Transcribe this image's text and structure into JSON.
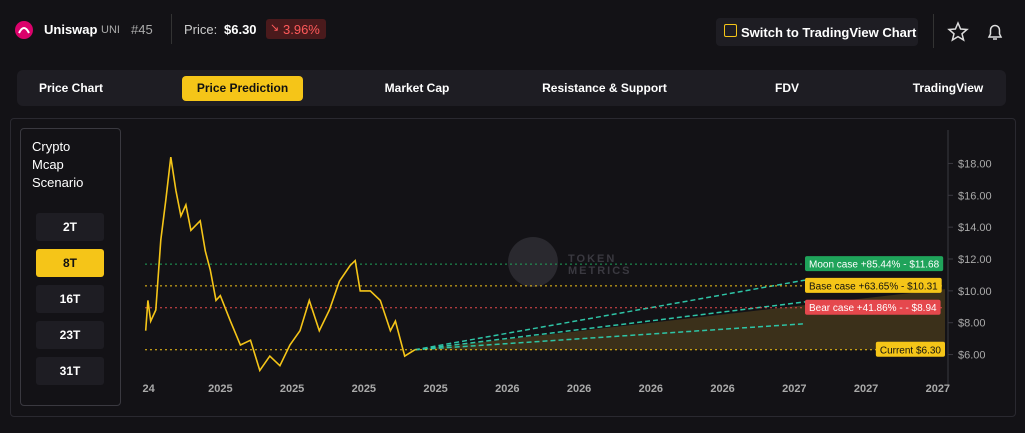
{
  "header": {
    "name": "Uniswap",
    "symbol": "UNI",
    "rank": "#45",
    "price_label": "Price:",
    "price": "$6.30",
    "change": "3.96%",
    "button": "Switch to TradingView Chart"
  },
  "tabs": [
    "Price Chart",
    "Price Prediction",
    "Market Cap",
    "Resistance & Support",
    "FDV",
    "TradingView"
  ],
  "active_tab": 1,
  "scenario_panel": {
    "title": "Crypto Mcap Scenario",
    "options": [
      "2T",
      "8T",
      "16T",
      "23T",
      "31T"
    ],
    "active": 1
  },
  "watermark": [
    "TOKEN",
    "METRICS"
  ],
  "chart_data": {
    "type": "line",
    "price": {
      "name": "Price",
      "color": "#f5c518",
      "x": [
        -0.04,
        -0.01,
        0.03,
        0.1,
        0.17,
        0.24,
        0.31,
        0.38,
        0.45,
        0.52,
        0.59,
        0.72,
        0.79,
        0.86,
        0.94,
        1.0,
        1.14,
        1.28,
        1.42,
        1.55,
        1.69,
        1.83,
        1.97,
        2.11,
        2.24,
        2.38,
        2.52,
        2.66,
        2.81,
        2.88,
        2.95,
        3.09,
        3.23,
        3.37,
        3.44,
        3.57,
        3.71
      ],
      "values": [
        7.5,
        9.4,
        8.1,
        8.8,
        13.2,
        15.7,
        18.4,
        16.3,
        14.7,
        15.4,
        13.8,
        14.4,
        12.5,
        11.3,
        9.4,
        9.7,
        8.1,
        6.6,
        6.9,
        5.0,
        5.9,
        5.3,
        6.6,
        7.5,
        9.4,
        7.5,
        8.8,
        10.6,
        11.6,
        11.9,
        10.0,
        10.0,
        9.4,
        7.5,
        8.1,
        5.9,
        6.3
      ]
    },
    "scenarios": [
      {
        "label": "Moon case +85.44% - $11.68",
        "value": 11.68,
        "color": "#1fa35a"
      },
      {
        "label": "Base case +63.65% - $10.31",
        "value": 10.31,
        "color": "#f5c518"
      },
      {
        "label": "Bear case +41.86% - - $8.94",
        "value": 8.94,
        "color": "#e5484d"
      }
    ],
    "current": {
      "label": "Current $6.30",
      "value": 6.3,
      "color": "#f5c518"
    },
    "ylim": [
      3.9,
      20.1
    ],
    "yticks": [
      {
        "value": 6,
        "label": "$6.00"
      },
      {
        "value": 8,
        "label": "$8.00"
      },
      {
        "value": 10,
        "label": "$10.00"
      },
      {
        "value": 12,
        "label": "$12.00"
      },
      {
        "value": 14,
        "label": "$14.00"
      },
      {
        "value": 16,
        "label": "$16.00"
      },
      {
        "value": 18,
        "label": "$18.00"
      }
    ],
    "xlim": [
      -0.05,
      11.1
    ],
    "xticks": [
      {
        "value": 0,
        "label": "24"
      },
      {
        "value": 1,
        "label": "2025"
      },
      {
        "value": 2,
        "label": "2025"
      },
      {
        "value": 3,
        "label": "2025"
      },
      {
        "value": 4,
        "label": "2025"
      },
      {
        "value": 5,
        "label": "2026"
      },
      {
        "value": 6,
        "label": "2026"
      },
      {
        "value": 7,
        "label": "2026"
      },
      {
        "value": 8,
        "label": "2026"
      },
      {
        "value": 9,
        "label": "2027"
      },
      {
        "value": 10,
        "label": "2027"
      },
      {
        "value": 11,
        "label": "2027"
      }
    ]
  }
}
